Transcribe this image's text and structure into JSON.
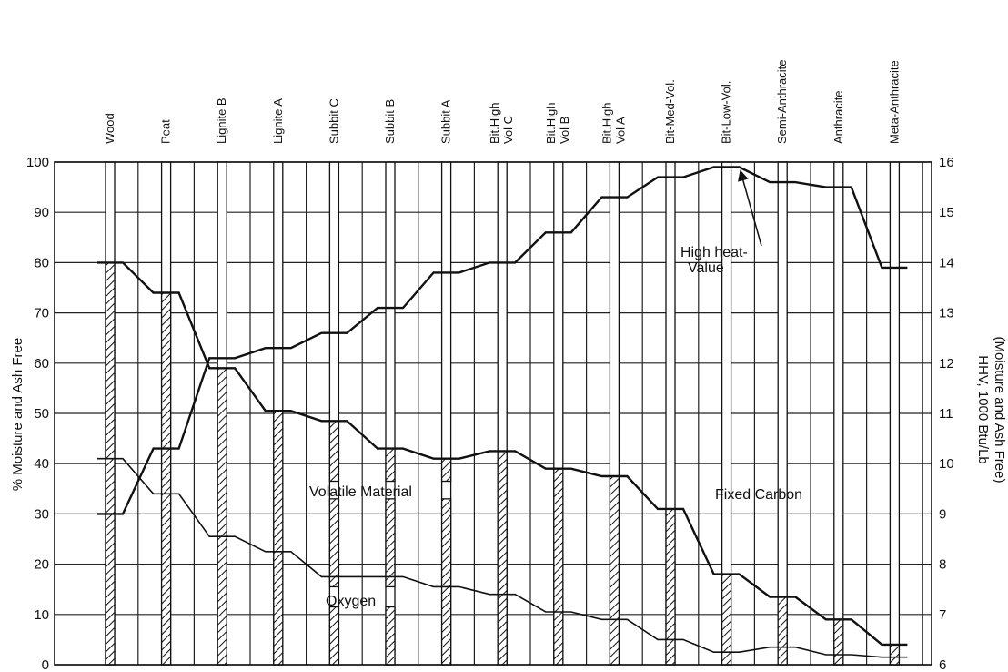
{
  "chart_data": {
    "type": "line",
    "ylabel": "% Moisture and Ash Free",
    "y2label_line1": "HHV, 1000 Btu/Lb",
    "y2label_line2": "(Moisture and Ash Free)",
    "ylim": [
      0,
      100
    ],
    "y2lim": [
      6,
      16
    ],
    "yticks": [
      0,
      10,
      20,
      30,
      40,
      50,
      60,
      70,
      80,
      90,
      100
    ],
    "y2ticks": [
      6,
      7,
      8,
      9,
      10,
      11,
      12,
      13,
      14,
      15,
      16
    ],
    "grid": true,
    "ranks": [
      {
        "line1": "Wood",
        "line2": ""
      },
      {
        "line1": "Peat",
        "line2": ""
      },
      {
        "line1": "Lignite B",
        "line2": ""
      },
      {
        "line1": "Lignite A",
        "line2": ""
      },
      {
        "line1": "Subbit C",
        "line2": ""
      },
      {
        "line1": "Subbit B",
        "line2": ""
      },
      {
        "line1": "Subbit A",
        "line2": ""
      },
      {
        "line1": "Bit.High",
        "line2": "Vol C"
      },
      {
        "line1": "Bit.High",
        "line2": "Vol B"
      },
      {
        "line1": "Bit.High",
        "line2": "Vol A"
      },
      {
        "line1": "Bit-Med-Vol.",
        "line2": ""
      },
      {
        "line1": "Bit-Low-Vol.",
        "line2": ""
      },
      {
        "line1": "Semi-Anthracite",
        "line2": ""
      },
      {
        "line1": "Anthracite",
        "line2": ""
      },
      {
        "line1": "Meta-Anthracite",
        "line2": ""
      }
    ],
    "series": [
      {
        "key": "volatile",
        "values": [
          80,
          74,
          59,
          50.5,
          48.5,
          43,
          41,
          42.5,
          39,
          37.5,
          31,
          18,
          13.5,
          9,
          4
        ]
      },
      {
        "key": "oxygen",
        "values": [
          41,
          34,
          25.5,
          22.5,
          17.5,
          17.5,
          15.5,
          14,
          10.5,
          9,
          5,
          2.5,
          3.5,
          2,
          1.5
        ]
      },
      {
        "key": "hhv",
        "axis": "right",
        "values": [
          9.0,
          10.3,
          12.1,
          12.3,
          12.6,
          13.1,
          13.8,
          14.0,
          14.6,
          15.3,
          15.7,
          15.9,
          15.6,
          15.5,
          13.9
        ]
      }
    ],
    "bars": [
      {
        "filled_top": 80,
        "filled_segments": [
          [
            0,
            80
          ]
        ]
      },
      {
        "filled_top": 74,
        "filled_segments": [
          [
            0,
            74
          ]
        ]
      },
      {
        "filled_top": 59,
        "filled_segments": [
          [
            0,
            59
          ]
        ]
      },
      {
        "filled_top": 50.5,
        "filled_segments": [
          [
            0,
            50.5
          ]
        ]
      },
      {
        "filled_top": 48.5,
        "filled_segments": [
          [
            0,
            11.5
          ],
          [
            15.5,
            33
          ],
          [
            36.5,
            48.5
          ]
        ]
      },
      {
        "filled_top": 43,
        "filled_segments": [
          [
            0,
            11.5
          ],
          [
            15.5,
            33
          ],
          [
            36.5,
            43
          ]
        ]
      },
      {
        "filled_top": 41,
        "filled_segments": [
          [
            0,
            33
          ],
          [
            36.5,
            41
          ]
        ]
      },
      {
        "filled_top": 42.5,
        "filled_segments": [
          [
            0,
            42.5
          ]
        ]
      },
      {
        "filled_top": 39,
        "filled_segments": [
          [
            0,
            39
          ]
        ]
      },
      {
        "filled_top": 37.5,
        "filled_segments": [
          [
            0,
            37.5
          ]
        ]
      },
      {
        "filled_top": 31,
        "filled_segments": [
          [
            0,
            31
          ]
        ]
      },
      {
        "filled_top": 18,
        "filled_segments": [
          [
            0,
            18
          ]
        ]
      },
      {
        "filled_top": 13.5,
        "filled_segments": [
          [
            0,
            13.5
          ]
        ]
      },
      {
        "filled_top": 9,
        "filled_segments": [
          [
            0,
            9
          ]
        ]
      },
      {
        "filled_top": 4,
        "filled_segments": [
          [
            0,
            4
          ]
        ]
      }
    ],
    "annotations": {
      "volatile": "Volatile  Material",
      "fixed": "Fixed  Carbon",
      "oxygen": "Oxygen",
      "high_heat_line1": "High  heat-",
      "high_heat_line2": "Value"
    }
  }
}
